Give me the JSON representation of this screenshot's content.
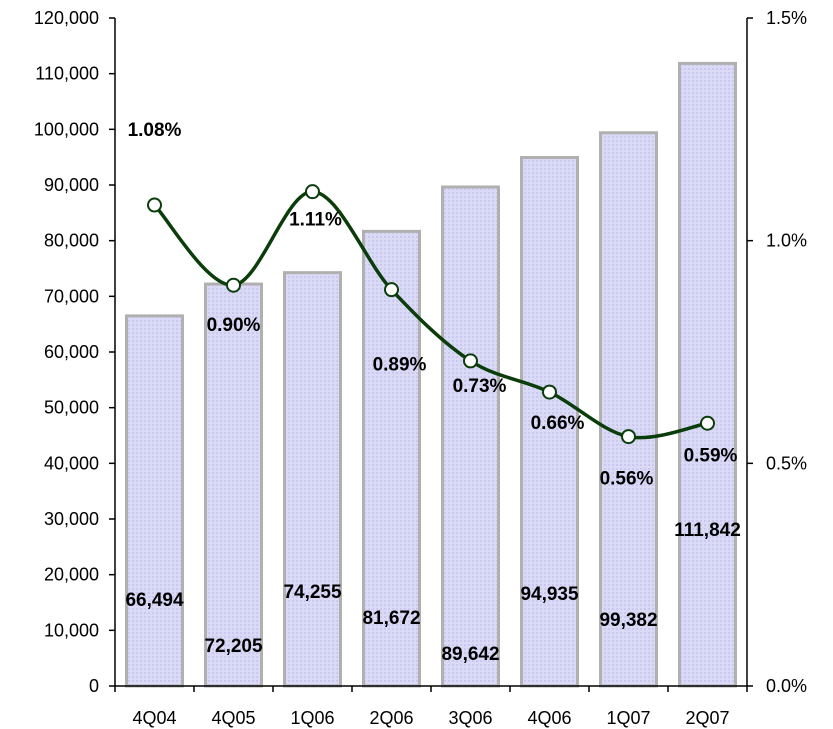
{
  "chart_data": {
    "type": "bar",
    "categories": [
      "4Q04",
      "4Q05",
      "1Q06",
      "2Q06",
      "3Q06",
      "4Q06",
      "1Q07",
      "2Q07"
    ],
    "series": [
      {
        "type": "bar",
        "axis": "left",
        "values": [
          66494,
          72205,
          74255,
          81672,
          89642,
          94935,
          99382,
          111842
        ],
        "labels": [
          "66,494",
          "72,205",
          "74,255",
          "81,672",
          "89,642",
          "94,935",
          "99,382",
          "111,842"
        ]
      },
      {
        "type": "line",
        "axis": "right",
        "values": [
          1.08,
          0.9,
          1.11,
          0.89,
          0.73,
          0.66,
          0.56,
          0.59
        ],
        "labels": [
          "1.08%",
          "0.90%",
          "1.11%",
          "0.89%",
          "0.73%",
          "0.66%",
          "0.56%",
          "0.59%"
        ]
      }
    ],
    "y_left": {
      "ylim": [
        0,
        120000
      ],
      "ticks": [
        "0",
        "10,000",
        "20,000",
        "30,000",
        "40,000",
        "50,000",
        "60,000",
        "70,000",
        "80,000",
        "90,000",
        "100,000",
        "110,000",
        "120,000"
      ]
    },
    "y_right": {
      "ylim": [
        0,
        1.5
      ],
      "ticks": [
        "0.0%",
        "0.5%",
        "1.0%",
        "1.5%"
      ]
    },
    "grid": false,
    "legend": "none",
    "colors": {
      "bar_fill": "#d8d8f6",
      "bar_border": "#b0b0b0",
      "line": "#0b3d0b",
      "marker_fill": "#ffffff",
      "axis": "#000000"
    }
  }
}
